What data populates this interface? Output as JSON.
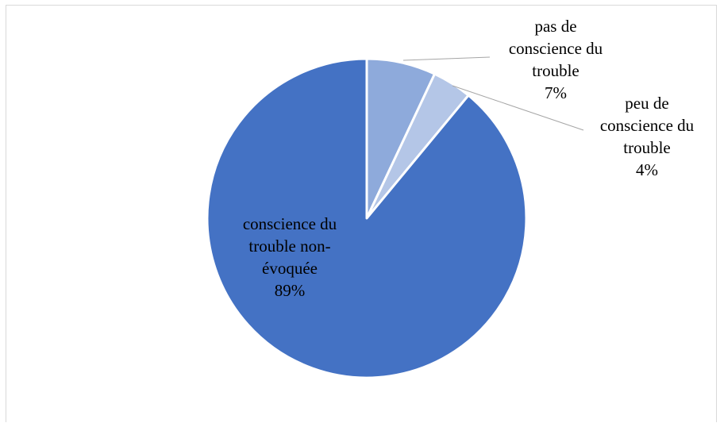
{
  "chart_data": {
    "type": "pie",
    "title": "",
    "start_angle_deg": 0,
    "direction": "clockwise",
    "slices": [
      {
        "name": "pas de conscience du trouble",
        "label_lines": [
          "pas de",
          "conscience du",
          "trouble"
        ],
        "percent_label": "7%",
        "value": 7,
        "color": "#8eaadb"
      },
      {
        "name": "peu de conscience du trouble",
        "label_lines": [
          "peu de",
          "conscience du",
          "trouble"
        ],
        "percent_label": "4%",
        "value": 4,
        "color": "#b4c6e7"
      },
      {
        "name": "conscience du trouble non-évoquée",
        "label_lines": [
          "conscience du",
          "trouble non-",
          "évoquée"
        ],
        "percent_label": "89%",
        "value": 89,
        "color": "#4472c4"
      }
    ],
    "slice_border_color": "#ffffff",
    "leader_line_color": "#a6a6a6",
    "frame_border_color": "#d9d9d9"
  }
}
